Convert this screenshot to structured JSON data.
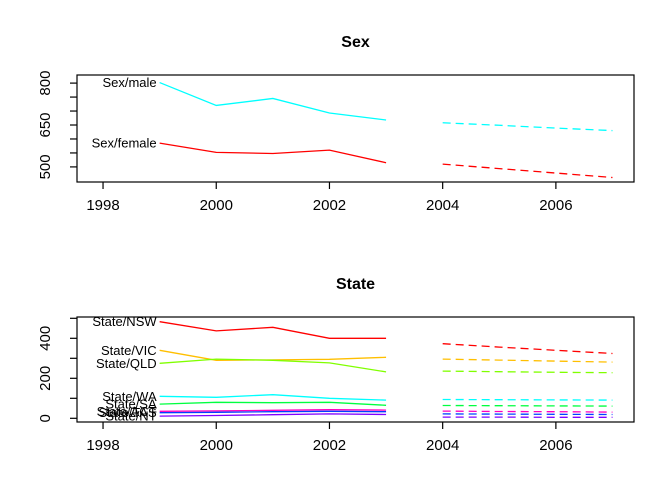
{
  "figure": {
    "background": "#ffffff",
    "axis_color": "#000000",
    "text_color": "#000000"
  },
  "chart_data": [
    {
      "type": "line",
      "title": "Sex",
      "grid": false,
      "legend": "inline-labels-at-line-start",
      "xlim": [
        1997.54,
        2007.38
      ],
      "ylim": [
        446,
        829
      ],
      "x_ticks": [
        1998,
        2000,
        2002,
        2004,
        2006
      ],
      "x_tick_labels": [
        "1998",
        "2000",
        "2002",
        "2004",
        "2006"
      ],
      "y_ticks": [
        {
          "v": 500,
          "label": "500"
        },
        {
          "v": 550
        },
        {
          "v": 600
        },
        {
          "v": 650,
          "label": "650"
        },
        {
          "v": 700
        },
        {
          "v": 750
        },
        {
          "v": 800,
          "label": "800"
        }
      ],
      "series": [
        {
          "name": "Sex/male",
          "label": "Sex/male",
          "color": "#00FFFF",
          "solid": {
            "x": [
              1999,
              2000,
              2001,
              2002,
              2003
            ],
            "y": [
              802,
              720,
              745,
              693,
              668
            ]
          },
          "forecast": {
            "x": [
              2004,
              2005,
              2006,
              2007
            ],
            "y": [
              658,
              649,
              639,
              630
            ],
            "style": "dashed"
          }
        },
        {
          "name": "Sex/female",
          "label": "Sex/female",
          "color": "#FF0000",
          "solid": {
            "x": [
              1999,
              2000,
              2001,
              2002,
              2003
            ],
            "y": [
              585,
              552,
              548,
              560,
              515
            ]
          },
          "forecast": {
            "x": [
              2004,
              2005,
              2006,
              2007
            ],
            "y": [
              510,
              494,
              478,
              462
            ],
            "style": "dashed"
          }
        }
      ]
    },
    {
      "type": "line",
      "title": "State",
      "grid": false,
      "legend": "inline-labels-at-line-start",
      "xlim": [
        1997.54,
        2007.38
      ],
      "ylim": [
        -18.5,
        506.5
      ],
      "x_ticks": [
        1998,
        2000,
        2002,
        2004,
        2006
      ],
      "x_tick_labels": [
        "1998",
        "2000",
        "2002",
        "2004",
        "2006"
      ],
      "y_ticks": [
        {
          "v": 0,
          "label": "0"
        },
        {
          "v": 100
        },
        {
          "v": 200,
          "label": "200"
        },
        {
          "v": 300
        },
        {
          "v": 400,
          "label": "400"
        },
        {
          "v": 500
        }
      ],
      "series": [
        {
          "name": "State/NSW",
          "label": "State/NSW",
          "color": "#FF0000",
          "solid": {
            "x": [
              1999,
              2000,
              2001,
              2002,
              2003
            ],
            "y": [
              483,
              437,
              455,
              400,
              400
            ]
          },
          "forecast": {
            "x": [
              2004,
              2005,
              2006,
              2007
            ],
            "y": [
              373,
              356,
              340,
              324
            ],
            "style": "dashed"
          }
        },
        {
          "name": "State/VIC",
          "label": "State/VIC",
          "color": "#FFBF00",
          "solid": {
            "x": [
              1999,
              2000,
              2001,
              2002,
              2003
            ],
            "y": [
              340,
              290,
              292,
              295,
              305
            ]
          },
          "forecast": {
            "x": [
              2004,
              2005,
              2006,
              2007
            ],
            "y": [
              296,
              291,
              286,
              281
            ],
            "style": "dashed"
          }
        },
        {
          "name": "State/QLD",
          "label": "State/QLD",
          "color": "#80FF00",
          "solid": {
            "x": [
              1999,
              2000,
              2001,
              2002,
              2003
            ],
            "y": [
              275,
              296,
              290,
              277,
              232
            ]
          },
          "forecast": {
            "x": [
              2004,
              2005,
              2006,
              2007
            ],
            "y": [
              236,
              233,
              230,
              228
            ],
            "style": "dashed"
          }
        },
        {
          "name": "State/SA",
          "label": "State/SA",
          "color": "#00FF40",
          "solid": {
            "x": [
              1999,
              2000,
              2001,
              2002,
              2003
            ],
            "y": [
              71,
              80,
              78,
              80,
              65
            ]
          },
          "forecast": {
            "x": [
              2004,
              2005,
              2006,
              2007
            ],
            "y": [
              64,
              63,
              62,
              61
            ],
            "style": "dashed"
          }
        },
        {
          "name": "State/WA",
          "label": "State/WA",
          "color": "#00FFFF",
          "solid": {
            "x": [
              1999,
              2000,
              2001,
              2002,
              2003
            ],
            "y": [
              110,
              105,
              118,
              100,
              91
            ]
          },
          "forecast": {
            "x": [
              2004,
              2005,
              2006,
              2007
            ],
            "y": [
              94,
              93,
              92,
              91
            ],
            "style": "dashed"
          }
        },
        {
          "name": "State/TAS",
          "label": "State/TAS",
          "color": "#0040FF",
          "solid": {
            "x": [
              1999,
              2000,
              2001,
              2002,
              2003
            ],
            "y": [
              28,
              30,
              33,
              35,
              33
            ]
          },
          "forecast": {
            "x": [
              2004,
              2005,
              2006,
              2007
            ],
            "y": [
              22,
              21,
              20,
              19
            ],
            "style": "dashed"
          }
        },
        {
          "name": "State/NT",
          "label": "State/NT",
          "color": "#8000FF",
          "solid": {
            "x": [
              1999,
              2000,
              2001,
              2002,
              2003
            ],
            "y": [
              11,
              14,
              18,
              22,
              19
            ]
          },
          "forecast": {
            "x": [
              2004,
              2005,
              2006,
              2007
            ],
            "y": [
              6,
              6,
              5,
              5
            ],
            "style": "dashed"
          }
        },
        {
          "name": "State/ACT",
          "label": "State/ACT",
          "color": "#FF00BF",
          "solid": {
            "x": [
              1999,
              2000,
              2001,
              2002,
              2003
            ],
            "y": [
              35,
              37,
              40,
              43,
              41
            ]
          },
          "forecast": {
            "x": [
              2004,
              2005,
              2006,
              2007
            ],
            "y": [
              36,
              34,
              33,
              31
            ],
            "style": "dashed"
          }
        }
      ]
    }
  ]
}
